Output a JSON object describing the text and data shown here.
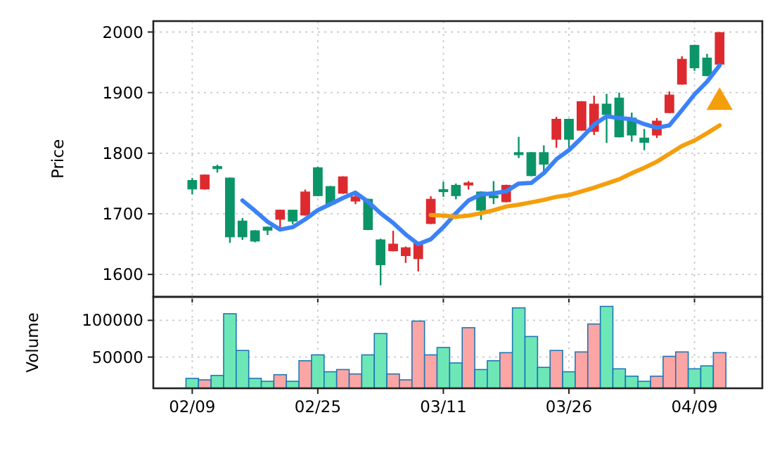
{
  "chart_data": [
    {
      "type": "candlestick",
      "ylabel": "Price",
      "tick_labels": "y",
      "grid": true,
      "categories": [
        null,
        null,
        null,
        null,
        null,
        null,
        null,
        null,
        null,
        null,
        null,
        null,
        null,
        null,
        null,
        null,
        null,
        null,
        null,
        null,
        null,
        null,
        null,
        null,
        null,
        null,
        null,
        null,
        null,
        null,
        null,
        null,
        null,
        null,
        null,
        null,
        null,
        null,
        null,
        null,
        null,
        null,
        null
      ],
      "ylim": [
        1563,
        2018
      ],
      "yticks": [
        1600,
        1700,
        1800,
        1900,
        2000
      ],
      "ohlc": [
        [
          1741,
          1759,
          1732,
          1755
        ],
        [
          1764,
          1765,
          1740,
          1741
        ],
        [
          1775,
          1781,
          1768,
          1778
        ],
        [
          1662,
          1760,
          1652,
          1759
        ],
        [
          1662,
          1693,
          1657,
          1688
        ],
        [
          1655,
          1673,
          1653,
          1672
        ],
        [
          1673,
          1679,
          1665,
          1678
        ],
        [
          1706,
          1707,
          1677,
          1691
        ],
        [
          1688,
          1706,
          1683,
          1706
        ],
        [
          1736,
          1740,
          1697,
          1698
        ],
        [
          1730,
          1778,
          1729,
          1776
        ],
        [
          1716,
          1746,
          1715,
          1745
        ],
        [
          1761,
          1762,
          1733,
          1734
        ],
        [
          1728,
          1735,
          1716,
          1721
        ],
        [
          1674,
          1725,
          1673,
          1724
        ],
        [
          1616,
          1659,
          1582,
          1657
        ],
        [
          1650,
          1672,
          1638,
          1639
        ],
        [
          1644,
          1646,
          1619,
          1631
        ],
        [
          1652,
          1653,
          1605,
          1626
        ],
        [
          1724,
          1729,
          1683,
          1684
        ],
        [
          1737,
          1753,
          1728,
          1740
        ],
        [
          1730,
          1750,
          1724,
          1747
        ],
        [
          1751,
          1754,
          1740,
          1748
        ],
        [
          1706,
          1737,
          1690,
          1736
        ],
        [
          1727,
          1754,
          1716,
          1730
        ],
        [
          1747,
          1748,
          1719,
          1720
        ],
        [
          1799,
          1827,
          1792,
          1801
        ],
        [
          1763,
          1802,
          1762,
          1801
        ],
        [
          1782,
          1813,
          1770,
          1801
        ],
        [
          1856,
          1860,
          1809,
          1823
        ],
        [
          1823,
          1857,
          1809,
          1856
        ],
        [
          1885,
          1886,
          1837,
          1838
        ],
        [
          1881,
          1895,
          1830,
          1836
        ],
        [
          1864,
          1898,
          1817,
          1881
        ],
        [
          1827,
          1900,
          1826,
          1891
        ],
        [
          1830,
          1867,
          1819,
          1858
        ],
        [
          1818,
          1840,
          1805,
          1825
        ],
        [
          1853,
          1858,
          1825,
          1830
        ],
        [
          1896,
          1902,
          1866,
          1867
        ],
        [
          1955,
          1960,
          1913,
          1914
        ],
        [
          1941,
          1979,
          1936,
          1978
        ],
        [
          1928,
          1964,
          1927,
          1957
        ],
        [
          1999,
          2000,
          1946,
          1947
        ]
      ],
      "colors": [
        "#0b9467",
        "#dc2a2f",
        "#0b9467",
        "#0b9467",
        "#0b9467",
        "#0b9467",
        "#0b9467",
        "#dc2a2f",
        "#0b9467",
        "#dc2a2f",
        "#0b9467",
        "#0b9467",
        "#dc2a2f",
        "#dc2a2f",
        "#0b9467",
        "#0b9467",
        "#dc2a2f",
        "#dc2a2f",
        "#dc2a2f",
        "#dc2a2f",
        "#0b9467",
        "#0b9467",
        "#dc2a2f",
        "#0b9467",
        "#0b9467",
        "#dc2a2f",
        "#0b9467",
        "#0b9467",
        "#0b9467",
        "#dc2a2f",
        "#0b9467",
        "#dc2a2f",
        "#dc2a2f",
        "#0b9467",
        "#0b9467",
        "#0b9467",
        "#0b9467",
        "#dc2a2f",
        "#dc2a2f",
        "#dc2a2f",
        "#0b9467",
        "#0b9467",
        "#dc2a2f"
      ],
      "series": [
        {
          "type": "line",
          "color": "#3b82f6",
          "values": [
            null,
            null,
            null,
            null,
            1722,
            1705,
            1687,
            1674,
            1678,
            1691,
            1706,
            1716,
            1726,
            1735,
            1720,
            1701,
            1685,
            1666,
            1650,
            1658,
            1678,
            1701,
            1722,
            1732,
            1734,
            1737,
            1750,
            1751,
            1767,
            1790,
            1805,
            1825,
            1847,
            1861,
            1858,
            1856,
            1848,
            1842,
            1846,
            1871,
            1897,
            1918,
            1945
          ]
        },
        {
          "type": "line",
          "color": "#f59e0b",
          "values": [
            null,
            null,
            null,
            null,
            null,
            null,
            null,
            null,
            null,
            null,
            null,
            null,
            null,
            null,
            null,
            null,
            null,
            null,
            null,
            1698,
            1697,
            1695,
            1697,
            1701,
            1706,
            1712,
            1715,
            1719,
            1723,
            1728,
            1731,
            1737,
            1743,
            1750,
            1757,
            1767,
            1776,
            1786,
            1799,
            1812,
            1821,
            1833,
            1846
          ]
        },
        {
          "type": "scatter",
          "marker": "triangle",
          "color": "#f59e0b",
          "values": [
            null,
            null,
            null,
            null,
            null,
            null,
            null,
            null,
            null,
            null,
            null,
            null,
            null,
            null,
            null,
            null,
            null,
            null,
            null,
            null,
            null,
            null,
            null,
            null,
            null,
            null,
            null,
            null,
            null,
            null,
            null,
            null,
            null,
            null,
            null,
            null,
            null,
            null,
            null,
            null,
            null,
            null,
            1884
          ]
        }
      ]
    },
    {
      "type": "bar",
      "ylabel": "Volume",
      "grid": true,
      "categories": [
        "02/09",
        null,
        null,
        null,
        null,
        null,
        null,
        null,
        null,
        null,
        "02/25",
        null,
        null,
        null,
        null,
        null,
        null,
        null,
        null,
        null,
        "03/11",
        null,
        null,
        null,
        null,
        null,
        null,
        null,
        null,
        null,
        "03/26",
        null,
        null,
        null,
        null,
        null,
        null,
        null,
        null,
        null,
        "04/09",
        null,
        null
      ],
      "ylim": [
        7500,
        132000
      ],
      "yticks": [
        50000,
        100000
      ],
      "values": [
        21000,
        19000,
        25000,
        109000,
        59000,
        21000,
        17000,
        26000,
        17000,
        45000,
        53000,
        30000,
        33000,
        27000,
        53000,
        82000,
        27000,
        19000,
        99000,
        53000,
        63000,
        42000,
        90000,
        33000,
        45000,
        56000,
        117000,
        78000,
        36000,
        59000,
        30000,
        57000,
        95000,
        119000,
        34000,
        24000,
        17000,
        24000,
        51000,
        57000,
        34000,
        38000,
        56000
      ],
      "colors": [
        "#6ee7b7",
        "#fca5a5",
        "#6ee7b7",
        "#6ee7b7",
        "#6ee7b7",
        "#6ee7b7",
        "#6ee7b7",
        "#fca5a5",
        "#6ee7b7",
        "#fca5a5",
        "#6ee7b7",
        "#6ee7b7",
        "#fca5a5",
        "#fca5a5",
        "#6ee7b7",
        "#6ee7b7",
        "#fca5a5",
        "#fca5a5",
        "#fca5a5",
        "#fca5a5",
        "#6ee7b7",
        "#6ee7b7",
        "#fca5a5",
        "#6ee7b7",
        "#6ee7b7",
        "#fca5a5",
        "#6ee7b7",
        "#6ee7b7",
        "#6ee7b7",
        "#fca5a5",
        "#6ee7b7",
        "#fca5a5",
        "#fca5a5",
        "#6ee7b7",
        "#6ee7b7",
        "#6ee7b7",
        "#6ee7b7",
        "#fca5a5",
        "#fca5a5",
        "#fca5a5",
        "#6ee7b7",
        "#6ee7b7",
        "#fca5a5"
      ]
    }
  ]
}
